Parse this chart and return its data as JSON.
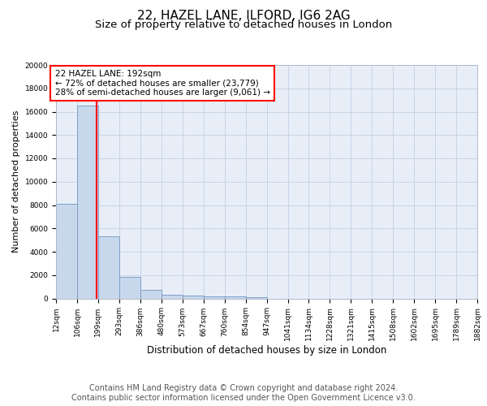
{
  "title1": "22, HAZEL LANE, ILFORD, IG6 2AG",
  "title2": "Size of property relative to detached houses in London",
  "xlabel": "Distribution of detached houses by size in London",
  "ylabel": "Number of detached properties",
  "bar_color": "#c8d8ec",
  "bar_edge_color": "#7096c0",
  "redline_x": 192,
  "annotation_text": "22 HAZEL LANE: 192sqm\n← 72% of detached houses are smaller (23,779)\n28% of semi-detached houses are larger (9,061) →",
  "annotation_box_color": "white",
  "annotation_box_edge": "red",
  "redline_color": "red",
  "footer": "Contains HM Land Registry data © Crown copyright and database right 2024.\nContains public sector information licensed under the Open Government Licence v3.0.",
  "bin_edges": [
    12,
    106,
    199,
    293,
    386,
    480,
    573,
    667,
    760,
    854,
    947,
    1041,
    1134,
    1228,
    1321,
    1415,
    1508,
    1602,
    1695,
    1789,
    1882
  ],
  "bin_counts": [
    8100,
    16500,
    5300,
    1850,
    700,
    320,
    230,
    180,
    160,
    130,
    0,
    0,
    0,
    0,
    0,
    0,
    0,
    0,
    0,
    0
  ],
  "ylim": [
    0,
    20000
  ],
  "yticks": [
    0,
    2000,
    4000,
    6000,
    8000,
    10000,
    12000,
    14000,
    16000,
    18000,
    20000
  ],
  "grid_color": "#c8d4e8",
  "bg_color": "#e8eef8",
  "title1_fontsize": 11,
  "title2_fontsize": 9.5,
  "footer_fontsize": 7,
  "ylabel_fontsize": 8,
  "xlabel_fontsize": 8.5,
  "tick_fontsize": 6.5,
  "annotation_fontsize": 7.5
}
